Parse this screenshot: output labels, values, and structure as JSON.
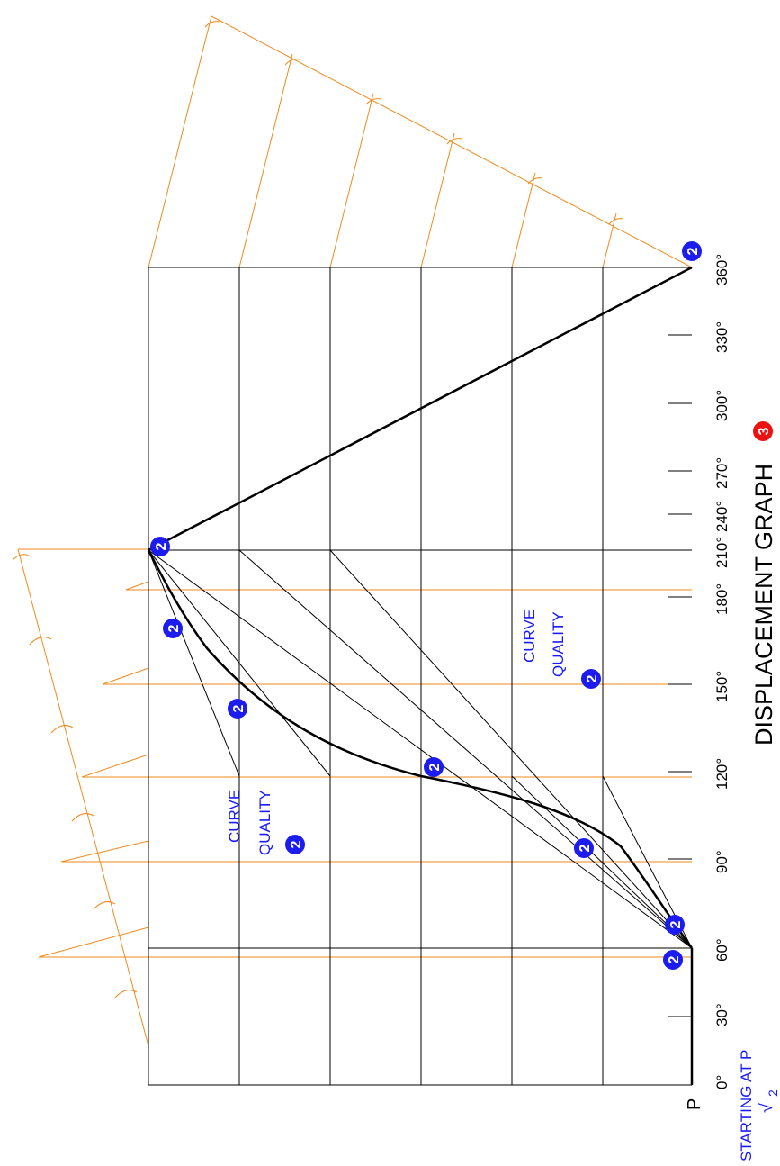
{
  "title": "DISPLACEMENT GRAPH",
  "title_marker": "3",
  "start_label": "STARTING AT P",
  "start_check": "√",
  "start_check_mark": "2",
  "point_label": "P",
  "curve_label_top": "CURVE",
  "curve_label_bottom": "QUALITY",
  "mark_value": "2",
  "angle_labels": [
    "0°",
    "30°",
    "60°",
    "90°",
    "120°",
    "150°",
    "180°",
    "210°",
    "240°",
    "270°",
    "300°",
    "330°",
    "360°"
  ],
  "colors": {
    "grid": "#000000",
    "construction": "#f08a1c",
    "annotation": "#1a1aff",
    "badge_blue": "#1c1cf0",
    "badge_red": "#ee1111"
  }
}
